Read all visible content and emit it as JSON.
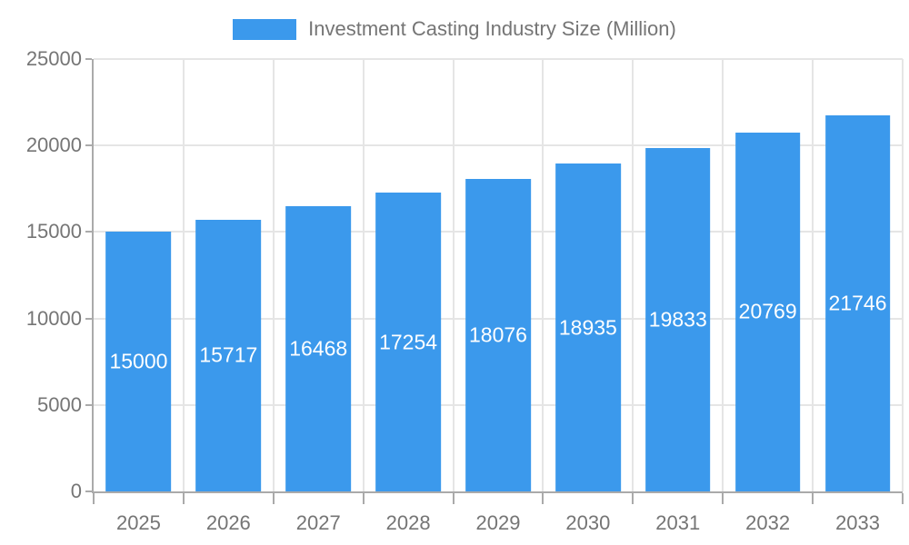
{
  "chart_data": {
    "type": "bar",
    "series_name": "Investment Casting Industry Size (Million)",
    "categories": [
      "2025",
      "2026",
      "2027",
      "2028",
      "2029",
      "2030",
      "2031",
      "2032",
      "2033"
    ],
    "values": [
      15000,
      15717,
      16468,
      17254,
      18076,
      18935,
      19833,
      20769,
      21746
    ],
    "xlabel": "",
    "ylabel": "",
    "ylim": [
      0,
      25000
    ],
    "y_ticks": [
      0,
      5000,
      10000,
      15000,
      20000,
      25000
    ],
    "grid": true,
    "legend_position": "top",
    "value_label_position": "inside-center",
    "bar_color": "#3B99EC",
    "value_label_color": "#FFFFFF"
  },
  "colors": {
    "background": "#FFFFFF",
    "axis_line": "#AAAAAA",
    "gridline": "#E5E5E5",
    "tick_label_text": "#757575",
    "legend_text": "#757575"
  }
}
